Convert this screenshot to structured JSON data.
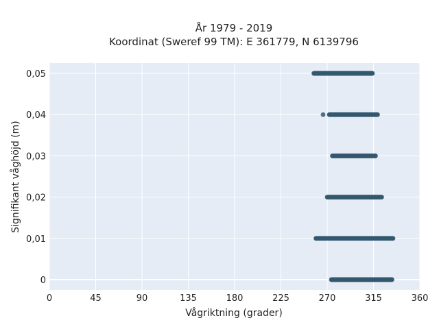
{
  "chart_data": {
    "type": "scatter",
    "title": "År 1979 - 2019",
    "subtitle": "Koordinat (Sweref 99 TM): E 361779, N 6139796",
    "xlabel": "Vågriktning (grader)",
    "ylabel": "Signifikant våghöjd (m)",
    "xlim": [
      0,
      360
    ],
    "ylim": [
      -0.0025,
      0.0525
    ],
    "x_ticks": [
      0,
      45,
      90,
      135,
      180,
      225,
      270,
      315,
      360
    ],
    "x_tick_labels": [
      "0",
      "45",
      "90",
      "135",
      "180",
      "225",
      "270",
      "315",
      "360"
    ],
    "y_ticks": [
      0,
      0.01,
      0.02,
      0.03,
      0.04,
      0.05
    ],
    "y_tick_labels": [
      "0",
      "0,01",
      "0,02",
      "0,03",
      "0,04",
      "0,05"
    ],
    "grid": true,
    "point_color": "#34586e",
    "series": [
      {
        "values_note_free": true,
        "bands": [
          {
            "y": 0.0,
            "x_from": 274,
            "x_to": 333
          },
          {
            "y": 0.01,
            "x_from": 259,
            "x_to": 334
          },
          {
            "y": 0.02,
            "x_from": 270,
            "x_to": 323
          },
          {
            "y": 0.03,
            "x_from": 275,
            "x_to": 317
          },
          {
            "y": 0.04,
            "x_from": 272,
            "x_to": 319
          },
          {
            "y": 0.05,
            "x_from": 257,
            "x_to": 314
          }
        ],
        "outliers": [
          {
            "x": 266,
            "y": 0.04
          }
        ]
      }
    ]
  }
}
